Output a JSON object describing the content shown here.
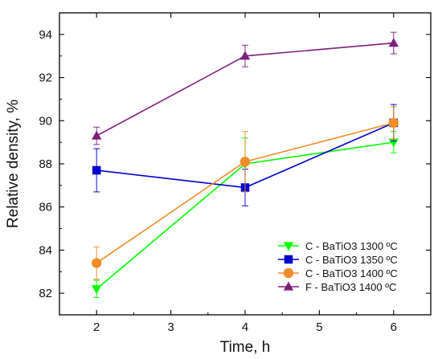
{
  "chart_data": {
    "type": "line",
    "title": "",
    "xlabel": "Time, h",
    "ylabel": "Relative density, %",
    "xlim": [
      1.5,
      6.5
    ],
    "ylim": [
      81,
      95
    ],
    "xticks": [
      2,
      3,
      4,
      5,
      6
    ],
    "yticks": [
      82,
      84,
      86,
      88,
      90,
      92,
      94
    ],
    "grid": false,
    "legend_position": "bottom-right",
    "x": [
      2,
      4,
      6
    ],
    "series": [
      {
        "name": "C - BaTiO3  1300 ºC",
        "color": "#00FF00",
        "marker": "triangle-down",
        "values": [
          82.2,
          88.0,
          89.0
        ],
        "errors": [
          0.4,
          1.2,
          0.5
        ]
      },
      {
        "name": "C - BaTiO3  1350 ºC",
        "color": "#0000CD",
        "marker": "square",
        "values": [
          87.7,
          86.9,
          89.9
        ],
        "errors": [
          1.0,
          0.85,
          0.85
        ]
      },
      {
        "name": "C - BaTiO3  1400 ºC",
        "color": "#F28C28",
        "marker": "circle",
        "values": [
          83.4,
          88.1,
          89.9
        ],
        "errors": [
          0.75,
          1.4,
          0.75
        ]
      },
      {
        "name": "F - BaTiO3  1400 ºC",
        "color": "#7F1F7F",
        "marker": "triangle-up",
        "values": [
          89.3,
          93.0,
          93.6
        ],
        "errors": [
          0.4,
          0.5,
          0.5
        ]
      }
    ]
  }
}
